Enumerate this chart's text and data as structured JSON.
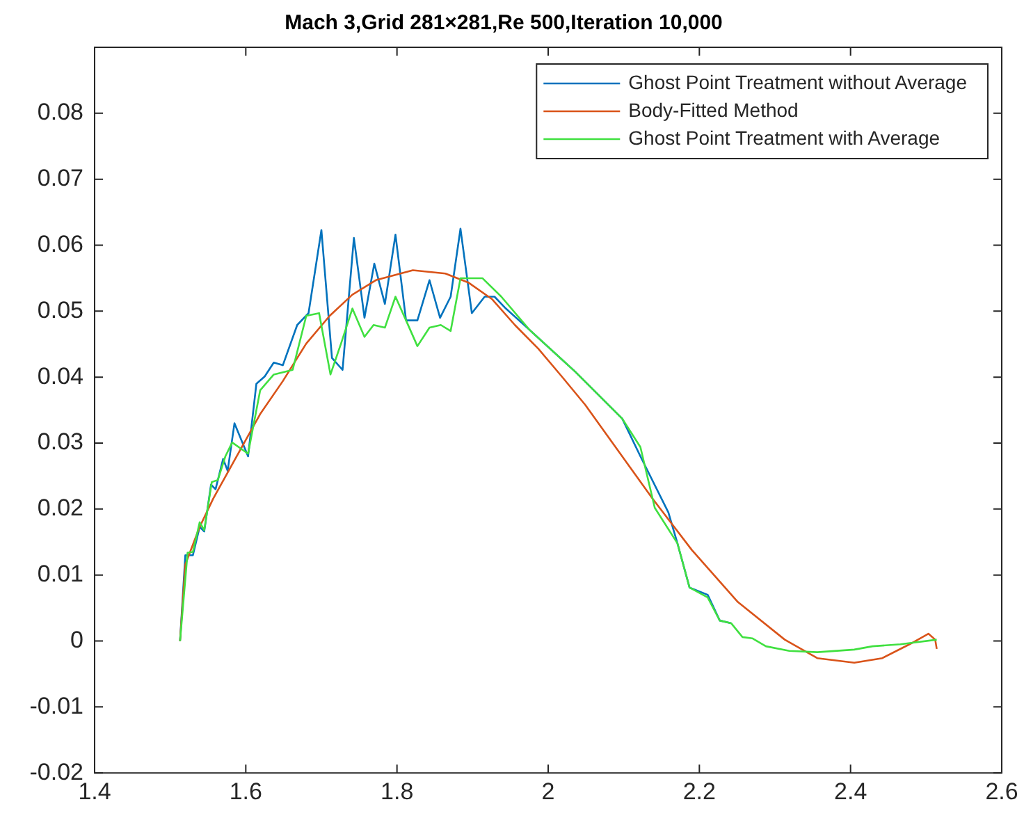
{
  "chart_data": {
    "type": "line",
    "title": "Mach 3,Grid 281×281,Re 500,Iteration 10,000",
    "xlim": [
      1.4,
      2.6
    ],
    "xticks": [
      1.4,
      1.6,
      1.8,
      2,
      2.2,
      2.4,
      2.6
    ],
    "ylim": [
      -0.02,
      0.09
    ],
    "yticks": [
      -0.02,
      -0.01,
      0,
      0.01,
      0.02,
      0.03,
      0.04,
      0.05,
      0.06,
      0.07,
      0.08
    ],
    "grid": false,
    "legend": "top right",
    "marker": "none",
    "line_style": "solid",
    "series": [
      {
        "name": "Ghost Point Treatment without Average",
        "color": "#0072bd",
        "x": [
          1.513,
          1.52,
          1.53,
          1.539,
          1.545,
          1.554,
          1.56,
          1.57,
          1.576,
          1.585,
          1.603,
          1.614,
          1.625,
          1.637,
          1.649,
          1.668,
          1.683,
          1.7,
          1.714,
          1.728,
          1.743,
          1.757,
          1.77,
          1.784,
          1.798,
          1.812,
          1.827,
          1.843,
          1.857,
          1.871,
          1.884,
          1.899,
          1.916,
          1.929,
          1.944,
          1.975,
          2.036,
          2.098,
          2.122,
          2.159,
          2.171,
          2.187,
          2.211,
          2.227,
          2.242
        ],
        "values": [
          0,
          0.013,
          0.013,
          0.0173,
          0.0166,
          0.0237,
          0.023,
          0.0276,
          0.0258,
          0.033,
          0.028,
          0.039,
          0.0401,
          0.0422,
          0.0418,
          0.0479,
          0.0497,
          0.0623,
          0.0429,
          0.0411,
          0.0611,
          0.049,
          0.0572,
          0.0511,
          0.0616,
          0.0486,
          0.0486,
          0.0547,
          0.049,
          0.0522,
          0.0625,
          0.0497,
          0.0522,
          0.0522,
          0.0504,
          0.0472,
          0.0408,
          0.0337,
          0.028,
          0.0195,
          0.0148,
          0.0081,
          0.007,
          0.0031,
          0.0027
        ]
      },
      {
        "name": "Body-Fitted Method",
        "color": "#d95319",
        "x": [
          1.513,
          1.52,
          1.539,
          1.557,
          1.588,
          1.619,
          1.649,
          1.68,
          1.711,
          1.741,
          1.772,
          1.821,
          1.864,
          1.895,
          1.926,
          1.956,
          1.987,
          2.018,
          2.049,
          2.138,
          2.19,
          2.251,
          2.313,
          2.356,
          2.405,
          2.442,
          2.478,
          2.503,
          2.512,
          2.514
        ],
        "values": [
          0,
          0.0116,
          0.0173,
          0.0216,
          0.028,
          0.0344,
          0.0394,
          0.0451,
          0.0493,
          0.0525,
          0.0547,
          0.0562,
          0.0557,
          0.0543,
          0.0518,
          0.0479,
          0.0443,
          0.0401,
          0.0358,
          0.0216,
          0.0138,
          0.0059,
          0.0002,
          -0.0026,
          -0.0033,
          -0.0026,
          -0.0005,
          0.0011,
          0.0002,
          -0.0012
        ]
      },
      {
        "name": "Ghost Point Treatment with Average",
        "color": "#40e040",
        "x": [
          1.513,
          1.523,
          1.53,
          1.539,
          1.545,
          1.555,
          1.563,
          1.573,
          1.582,
          1.603,
          1.619,
          1.637,
          1.662,
          1.68,
          1.697,
          1.712,
          1.726,
          1.741,
          1.757,
          1.769,
          1.784,
          1.798,
          1.812,
          1.827,
          1.843,
          1.858,
          1.871,
          1.884,
          1.913,
          1.938,
          1.975,
          2.036,
          2.098,
          2.122,
          2.141,
          2.171,
          2.187,
          2.211,
          2.227,
          2.242,
          2.257,
          2.27,
          2.288,
          2.319,
          2.356,
          2.405,
          2.429,
          2.466,
          2.514
        ],
        "values": [
          0,
          0.0134,
          0.0135,
          0.018,
          0.0168,
          0.0241,
          0.0244,
          0.028,
          0.0301,
          0.0284,
          0.038,
          0.0404,
          0.0411,
          0.0493,
          0.0497,
          0.0404,
          0.0451,
          0.0504,
          0.0461,
          0.0479,
          0.0475,
          0.0522,
          0.0486,
          0.0447,
          0.0475,
          0.0479,
          0.047,
          0.055,
          0.055,
          0.0522,
          0.0472,
          0.0408,
          0.0337,
          0.0294,
          0.0202,
          0.0148,
          0.0081,
          0.0066,
          0.0031,
          0.0027,
          0.0006,
          0.0004,
          -0.0008,
          -0.0015,
          -0.0017,
          -0.0013,
          -0.0008,
          -0.0005,
          0.0002
        ]
      }
    ]
  }
}
